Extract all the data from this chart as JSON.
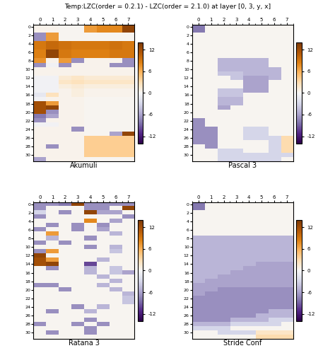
{
  "title": "Temp:LZC(order = 0.2.1) - LZC(order = 2.1.0) at layer [0, 3, y, x]",
  "subtitles": [
    "Akumuli",
    "Pascal 3",
    "Ratana 3",
    "Stride Conf"
  ],
  "x_ticks": [
    0,
    1,
    2,
    3,
    4,
    5,
    6,
    7
  ],
  "y_ticks": [
    0,
    2,
    4,
    6,
    8,
    10,
    12,
    14,
    16,
    18,
    20,
    22,
    24,
    26,
    28,
    30
  ],
  "vmin": -14,
  "vmax": 14,
  "cmap": "PuOr_r",
  "data_akumuli": [
    [
      0.5,
      0.5,
      0.3,
      0.3,
      8.0,
      8.5,
      8.0,
      13.0
    ],
    [
      -7.0,
      7.0,
      0.3,
      0.3,
      0.3,
      0.3,
      0.3,
      0.3
    ],
    [
      9.0,
      10.0,
      9.5,
      9.0,
      9.0,
      9.0,
      9.5,
      9.0
    ],
    [
      8.5,
      13.0,
      9.0,
      8.5,
      8.5,
      8.5,
      9.0,
      9.0
    ],
    [
      7.5,
      0.5,
      7.0,
      -7.0,
      0.5,
      0.5,
      0.5,
      -7.0
    ],
    [
      -7.0,
      -0.5,
      -7.0,
      0.5,
      0.5,
      0.5,
      -7.0,
      -7.0
    ],
    [
      0.5,
      0.5,
      0.5,
      0.5,
      0.5,
      0.5,
      0.5,
      0.5
    ],
    [
      -0.5,
      -0.5,
      1.0,
      1.0,
      1.0,
      1.0,
      1.0,
      1.0
    ],
    [
      -1.0,
      -1.0,
      1.5,
      2.0,
      1.5,
      1.5,
      1.5,
      1.5
    ],
    [
      -0.5,
      -0.5,
      1.0,
      1.5,
      1.0,
      1.0,
      1.0,
      1.0
    ],
    [
      -0.5,
      -0.5,
      0.5,
      1.0,
      0.5,
      0.5,
      0.5,
      0.5
    ],
    [
      -1.5,
      2.5,
      0.5,
      1.0,
      0.5,
      0.5,
      0.5,
      0.5
    ],
    [
      -0.5,
      0.5,
      0.5,
      0.5,
      0.3,
      0.3,
      0.3,
      0.3
    ],
    [
      12.0,
      7.0,
      0.5,
      0.5,
      0.3,
      0.3,
      0.3,
      0.3
    ],
    [
      12.0,
      13.0,
      0.5,
      0.5,
      0.3,
      0.3,
      0.3,
      0.3
    ],
    [
      12.0,
      -7.0,
      0.5,
      0.5,
      0.3,
      0.3,
      0.3,
      0.3
    ],
    [
      -8.0,
      -6.0,
      0.5,
      0.5,
      0.3,
      0.3,
      0.3,
      0.3
    ],
    [
      -0.5,
      -0.5,
      0.5,
      0.5,
      0.3,
      0.3,
      0.3,
      0.3
    ],
    [
      -0.5,
      -0.5,
      0.5,
      0.5,
      0.3,
      0.3,
      0.3,
      0.3
    ],
    [
      -0.5,
      -0.5,
      0.5,
      -7.0,
      0.3,
      0.3,
      0.3,
      0.3
    ],
    [
      0.5,
      -0.5,
      0.5,
      0.5,
      0.3,
      0.3,
      0.3,
      0.3
    ],
    [
      0.5,
      0.5,
      0.5,
      0.5,
      0.3,
      0.3,
      0.3,
      0.3
    ],
    [
      -6.0,
      0.5,
      0.5,
      0.5,
      -5.5,
      0.3,
      0.3,
      0.3
    ],
    [
      0.5,
      0.5,
      0.5,
      0.5,
      0.3,
      0.3,
      0.3,
      0.3
    ],
    [
      0.5,
      0.5,
      0.5,
      0.5,
      0.3,
      0.3,
      -6.0,
      13.0
    ],
    [
      0.5,
      0.5,
      0.5,
      0.5,
      0.3,
      0.3,
      0.3,
      0.3
    ],
    [
      0.5,
      0.5,
      0.5,
      0.5,
      0.3,
      0.3,
      0.3,
      0.3
    ],
    [
      0.5,
      0.5,
      0.5,
      0.5,
      0.3,
      0.3,
      0.3,
      0.3
    ],
    [
      0.5,
      0.5,
      0.5,
      0.5,
      3.0,
      3.0,
      3.0,
      3.0
    ],
    [
      0.5,
      -7.0,
      0.5,
      0.5,
      3.0,
      3.0,
      3.0,
      3.0
    ],
    [
      0.5,
      0.5,
      0.5,
      0.5,
      3.0,
      3.0,
      3.0,
      3.0
    ],
    [
      -6.0,
      0.5,
      0.5,
      0.5,
      0.3,
      0.3,
      0.3,
      0.3
    ]
  ],
  "data_pascal": [
    [
      -8.0,
      0.3,
      0.3,
      0.3,
      0.3,
      0.3,
      0.3,
      0.3
    ],
    [
      -8.0,
      0.3,
      0.3,
      0.3,
      0.3,
      0.3,
      0.3,
      0.3
    ],
    [
      0.3,
      0.3,
      0.3,
      0.3,
      0.3,
      0.3,
      0.3,
      0.3
    ],
    [
      0.3,
      0.3,
      0.3,
      0.3,
      0.3,
      0.3,
      0.3,
      0.3
    ],
    [
      0.3,
      0.3,
      0.3,
      0.3,
      0.3,
      0.3,
      0.3,
      0.3
    ],
    [
      0.3,
      0.3,
      0.3,
      0.3,
      0.3,
      0.3,
      0.3,
      0.3
    ],
    [
      0.3,
      0.3,
      0.3,
      0.3,
      0.3,
      0.3,
      0.3,
      0.3
    ],
    [
      0.3,
      0.3,
      0.3,
      0.3,
      0.3,
      0.3,
      0.3,
      0.3
    ],
    [
      0.3,
      0.3,
      -5.0,
      -5.0,
      -5.0,
      -5.0,
      0.3,
      0.3
    ],
    [
      0.3,
      0.3,
      -5.0,
      -5.0,
      -5.0,
      -5.0,
      0.3,
      0.3
    ],
    [
      0.3,
      0.3,
      -5.0,
      -5.0,
      -5.0,
      -5.0,
      -5.0,
      0.3
    ],
    [
      0.3,
      0.3,
      -4.0,
      -4.0,
      -5.0,
      -5.0,
      -5.0,
      0.3
    ],
    [
      0.3,
      0.3,
      0.3,
      -4.0,
      -6.0,
      -6.0,
      -5.0,
      0.3
    ],
    [
      0.3,
      0.3,
      0.3,
      0.3,
      -6.0,
      -6.0,
      0.3,
      0.3
    ],
    [
      0.3,
      0.3,
      0.3,
      0.3,
      -6.0,
      -6.0,
      0.3,
      0.3
    ],
    [
      0.3,
      0.3,
      -4.0,
      -4.0,
      -6.0,
      -6.0,
      0.3,
      0.3
    ],
    [
      0.3,
      0.3,
      -4.0,
      -4.0,
      0.3,
      0.3,
      0.3,
      0.3
    ],
    [
      0.3,
      0.3,
      -5.0,
      -5.0,
      0.3,
      0.3,
      0.3,
      0.3
    ],
    [
      0.3,
      0.3,
      -5.0,
      -5.0,
      0.3,
      0.3,
      0.3,
      0.3
    ],
    [
      0.3,
      0.3,
      -6.0,
      0.3,
      0.3,
      0.3,
      0.3,
      0.3
    ],
    [
      0.3,
      0.3,
      0.3,
      0.3,
      0.3,
      0.3,
      0.3,
      0.3
    ],
    [
      0.3,
      0.3,
      0.3,
      0.3,
      0.3,
      0.3,
      0.3,
      0.3
    ],
    [
      -7.0,
      0.3,
      0.3,
      0.3,
      0.3,
      0.3,
      0.3,
      0.3
    ],
    [
      -7.0,
      0.3,
      0.3,
      0.3,
      0.3,
      0.3,
      0.3,
      0.3
    ],
    [
      -7.0,
      -7.0,
      0.3,
      0.3,
      -3.0,
      -3.0,
      0.3,
      0.3
    ],
    [
      -7.0,
      -7.0,
      0.3,
      0.3,
      -3.0,
      -3.0,
      0.3,
      0.3
    ],
    [
      -7.0,
      -7.0,
      0.3,
      0.3,
      -3.0,
      -3.0,
      -3.0,
      3.0
    ],
    [
      -7.0,
      -7.0,
      0.3,
      0.3,
      0.3,
      0.3,
      -3.0,
      3.0
    ],
    [
      0.3,
      -7.0,
      0.3,
      0.3,
      0.3,
      0.3,
      -3.0,
      3.0
    ],
    [
      0.3,
      0.3,
      -3.0,
      -3.0,
      0.3,
      0.3,
      -3.0,
      3.0
    ],
    [
      0.3,
      0.3,
      -3.0,
      -3.0,
      -3.0,
      -3.0,
      -3.0,
      -3.0
    ],
    [
      0.3,
      0.3,
      -3.0,
      -3.0,
      -3.0,
      -3.0,
      -3.0,
      0.3
    ]
  ],
  "data_ratana": [
    [
      -7.0,
      -7.0,
      -8.0,
      13.0,
      -7.0,
      -7.0,
      -7.0,
      -7.0
    ],
    [
      -7.0,
      0.3,
      0.3,
      0.3,
      -7.0,
      -7.0,
      0.3,
      13.0
    ],
    [
      -3.0,
      0.3,
      -7.0,
      0.3,
      13.0,
      -6.0,
      -6.0,
      0.3
    ],
    [
      -7.0,
      0.3,
      0.3,
      0.3,
      0.3,
      0.3,
      0.3,
      -7.0
    ],
    [
      0.3,
      0.3,
      0.3,
      0.3,
      8.0,
      0.3,
      -6.0,
      0.3
    ],
    [
      0.3,
      -7.0,
      0.3,
      -7.0,
      0.3,
      -7.0,
      0.3,
      0.3
    ],
    [
      -7.0,
      0.3,
      0.3,
      -7.0,
      0.3,
      -6.0,
      0.3,
      0.3
    ],
    [
      0.3,
      7.0,
      0.3,
      0.3,
      0.3,
      0.3,
      -5.0,
      0.3
    ],
    [
      0.3,
      -5.0,
      0.3,
      0.3,
      -7.0,
      0.3,
      0.3,
      0.3
    ],
    [
      -7.0,
      0.3,
      -7.0,
      0.3,
      0.3,
      0.3,
      0.3,
      0.3
    ],
    [
      0.3,
      0.3,
      0.3,
      0.3,
      -7.0,
      0.3,
      -5.0,
      0.3
    ],
    [
      -7.0,
      7.0,
      0.3,
      0.3,
      0.3,
      0.3,
      -4.0,
      0.3
    ],
    [
      13.0,
      0.3,
      0.3,
      0.3,
      0.3,
      0.3,
      0.3,
      0.3
    ],
    [
      12.0,
      7.0,
      0.3,
      0.3,
      0.3,
      -5.0,
      0.3,
      0.3
    ],
    [
      12.0,
      13.0,
      0.3,
      0.3,
      -10.0,
      0.3,
      0.3,
      0.3
    ],
    [
      0.3,
      -7.0,
      0.3,
      0.3,
      -5.0,
      0.3,
      -4.0,
      0.3
    ],
    [
      0.3,
      0.3,
      0.3,
      0.3,
      -5.0,
      0.3,
      -4.0,
      -6.0
    ],
    [
      0.3,
      0.3,
      0.3,
      0.3,
      0.3,
      -5.0,
      0.3,
      0.3
    ],
    [
      0.3,
      0.3,
      0.3,
      0.3,
      0.3,
      0.3,
      -5.0,
      0.3
    ],
    [
      -7.0,
      -7.0,
      0.3,
      0.3,
      0.3,
      -5.0,
      0.3,
      0.3
    ],
    [
      0.3,
      0.3,
      -7.0,
      0.3,
      0.3,
      0.3,
      -5.0,
      0.3
    ],
    [
      0.3,
      0.3,
      0.3,
      0.3,
      0.3,
      0.3,
      0.3,
      -5.0
    ],
    [
      0.3,
      0.3,
      0.3,
      0.3,
      0.3,
      0.3,
      0.3,
      -4.0
    ],
    [
      0.3,
      0.3,
      0.3,
      0.3,
      0.3,
      0.3,
      0.3,
      -4.0
    ],
    [
      0.3,
      0.3,
      0.3,
      -7.0,
      0.3,
      -5.0,
      0.3,
      0.3
    ],
    [
      0.3,
      -7.0,
      0.3,
      0.3,
      -5.0,
      0.3,
      0.3,
      0.3
    ],
    [
      0.3,
      0.3,
      0.3,
      0.3,
      0.3,
      0.3,
      0.3,
      0.3
    ],
    [
      0.3,
      0.3,
      0.3,
      0.3,
      -7.0,
      0.3,
      0.3,
      0.3
    ],
    [
      -7.0,
      0.3,
      0.3,
      -7.0,
      0.3,
      -7.0,
      0.3,
      0.3
    ],
    [
      0.3,
      0.3,
      0.3,
      0.3,
      -7.0,
      0.3,
      0.3,
      0.3
    ],
    [
      0.3,
      -7.0,
      0.3,
      0.3,
      -7.0,
      0.3,
      0.3,
      0.3
    ],
    [
      0.3,
      0.3,
      0.3,
      0.3,
      0.3,
      0.3,
      0.3,
      0.3
    ]
  ],
  "data_stride": [
    [
      -8.0,
      0.3,
      0.3,
      0.3,
      0.3,
      0.3,
      0.3,
      0.3
    ],
    [
      -8.0,
      0.3,
      0.3,
      0.3,
      0.3,
      0.3,
      0.3,
      0.3
    ],
    [
      0.3,
      0.3,
      0.3,
      0.3,
      0.3,
      0.3,
      0.3,
      0.3
    ],
    [
      0.3,
      0.3,
      0.3,
      0.3,
      0.3,
      0.3,
      0.3,
      0.3
    ],
    [
      0.3,
      0.3,
      0.3,
      0.3,
      0.3,
      0.3,
      0.3,
      0.3
    ],
    [
      0.3,
      0.3,
      0.3,
      0.3,
      0.3,
      0.3,
      0.3,
      0.3
    ],
    [
      0.3,
      0.3,
      0.3,
      0.3,
      0.3,
      0.3,
      0.3,
      0.3
    ],
    [
      0.3,
      0.3,
      0.3,
      0.3,
      0.3,
      0.3,
      0.3,
      0.3
    ],
    [
      -5.0,
      -5.0,
      -5.0,
      -5.0,
      -5.0,
      -5.0,
      -5.0,
      -5.0
    ],
    [
      -5.0,
      -5.0,
      -5.0,
      -5.0,
      -5.0,
      -5.0,
      -5.0,
      -5.0
    ],
    [
      -5.0,
      -5.0,
      -5.0,
      -5.0,
      -5.0,
      -5.0,
      -5.0,
      -5.0
    ],
    [
      -5.0,
      -5.0,
      -5.0,
      -5.0,
      -5.0,
      -5.0,
      -5.0,
      -5.0
    ],
    [
      -5.0,
      -5.0,
      -5.0,
      -5.0,
      -5.0,
      -5.0,
      -5.0,
      -5.0
    ],
    [
      -5.0,
      -5.0,
      -5.0,
      -5.0,
      -5.0,
      -5.0,
      -5.0,
      -5.0
    ],
    [
      -5.0,
      -5.0,
      -5.0,
      -5.0,
      -5.0,
      -6.0,
      -6.0,
      -6.0
    ],
    [
      -5.0,
      -5.0,
      -5.0,
      -5.0,
      -6.0,
      -6.0,
      -6.0,
      -6.0
    ],
    [
      -5.0,
      -5.0,
      -5.0,
      -6.0,
      -6.0,
      -6.0,
      -6.0,
      -6.0
    ],
    [
      -5.0,
      -5.0,
      -6.0,
      -6.0,
      -6.0,
      -6.0,
      -6.0,
      -6.0
    ],
    [
      -5.0,
      -6.0,
      -6.0,
      -6.0,
      -6.0,
      -6.0,
      -6.0,
      -6.0
    ],
    [
      -6.0,
      -6.0,
      -6.0,
      -6.0,
      -6.0,
      -6.0,
      -6.0,
      -6.0
    ],
    [
      -6.0,
      -6.0,
      -7.0,
      -7.0,
      -7.0,
      -7.0,
      -7.0,
      -7.0
    ],
    [
      -6.0,
      -7.0,
      -7.0,
      -7.0,
      -7.0,
      -7.0,
      -7.0,
      -7.0
    ],
    [
      -7.0,
      -7.0,
      -7.0,
      -7.0,
      -7.0,
      -7.0,
      -7.0,
      -7.0
    ],
    [
      -7.0,
      -7.0,
      -7.0,
      -7.0,
      -7.0,
      -7.0,
      -7.0,
      -7.0
    ],
    [
      -7.0,
      -7.0,
      -7.0,
      -7.0,
      -7.0,
      -7.0,
      -7.0,
      -7.0
    ],
    [
      -7.0,
      -7.0,
      -7.0,
      -7.0,
      -7.0,
      -7.0,
      -5.0,
      -5.0
    ],
    [
      -7.0,
      -7.0,
      -7.0,
      -7.0,
      -7.0,
      -5.0,
      -5.0,
      -5.0
    ],
    [
      -7.0,
      -7.0,
      -7.0,
      -5.0,
      -5.0,
      -5.0,
      -3.0,
      -3.0
    ],
    [
      -5.0,
      -5.0,
      -5.0,
      -3.0,
      -3.0,
      -3.0,
      -3.0,
      0.3
    ],
    [
      -3.0,
      -3.0,
      -3.0,
      0.3,
      0.3,
      0.3,
      0.3,
      0.3
    ],
    [
      0.3,
      0.3,
      -3.0,
      -3.0,
      -3.0,
      2.0,
      2.0,
      2.0
    ],
    [
      0.3,
      0.3,
      0.3,
      0.3,
      0.3,
      3.0,
      3.0,
      3.0
    ]
  ]
}
